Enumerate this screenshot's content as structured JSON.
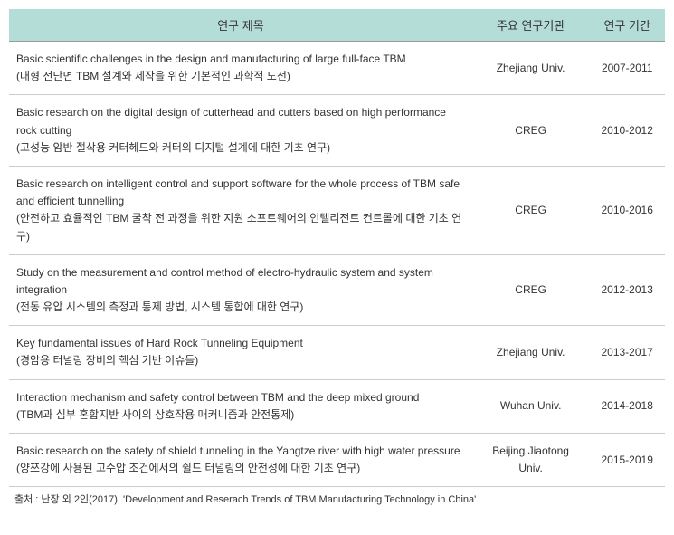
{
  "table": {
    "headers": {
      "title": "연구 제목",
      "institution": "주요 연구기관",
      "period": "연구 기간"
    },
    "rows": [
      {
        "title_en": "Basic scientific challenges in the design and manufacturing of large full-face TBM",
        "title_ko": "(대형 전단면 TBM 설계와 제작을 위한 기본적인 과학적 도전)",
        "institution": "Zhejiang Univ.",
        "period": "2007-2011"
      },
      {
        "title_en": "Basic research on the digital design of cutterhead and cutters based on high performance rock cutting",
        "title_ko": "(고성능 암반 절삭용 커터헤드와 커터의 디지털 설계에 대한 기초 연구)",
        "institution": "CREG",
        "period": "2010-2012"
      },
      {
        "title_en": "Basic research on intelligent control and support software for the whole process of TBM safe and efficient tunnelling",
        "title_ko": "(안전하고 효율적인 TBM 굴착 전 과정을 위한 지원 소프트웨어의 인텔리전트 컨트롤에 대한 기초 연구)",
        "institution": "CREG",
        "period": "2010-2016"
      },
      {
        "title_en": "Study on the measurement and control method of electro-hydraulic system and system integration",
        "title_ko": "(전동 유압 시스템의 측정과 통제 방법, 시스템 통합에 대한 연구)",
        "institution": "CREG",
        "period": "2012-2013"
      },
      {
        "title_en": "Key fundamental issues of Hard Rock Tunneling Equipment",
        "title_ko": "(경암용 터널링 장비의 핵심 기반 이슈들)",
        "institution": "Zhejiang Univ.",
        "period": "2013-2017"
      },
      {
        "title_en": "Interaction mechanism and safety control between TBM and the deep mixed ground",
        "title_ko": "(TBM과 심부 혼합지반 사이의 상호작용 매커니즘과 안전통제)",
        "institution": "Wuhan Univ.",
        "period": "2014-2018"
      },
      {
        "title_en": "Basic research on the safety of shield tunneling in the Yangtze river with high water pressure",
        "title_ko": "(양쯔강에 사용된 고수압 조건에서의 쉴드 터널링의 안전성에 대한 기초 연구)",
        "institution": "Beijing Jiaotong Univ.",
        "period": "2015-2019"
      }
    ]
  },
  "footnote": "출처 : 난장 외 2인(2017), 'Development and Reserach Trends of TBM Manufacturing Technology in China'",
  "colors": {
    "header_bg": "#b5ddd7",
    "border": "#cccccc",
    "text": "#333333",
    "background": "#ffffff"
  }
}
